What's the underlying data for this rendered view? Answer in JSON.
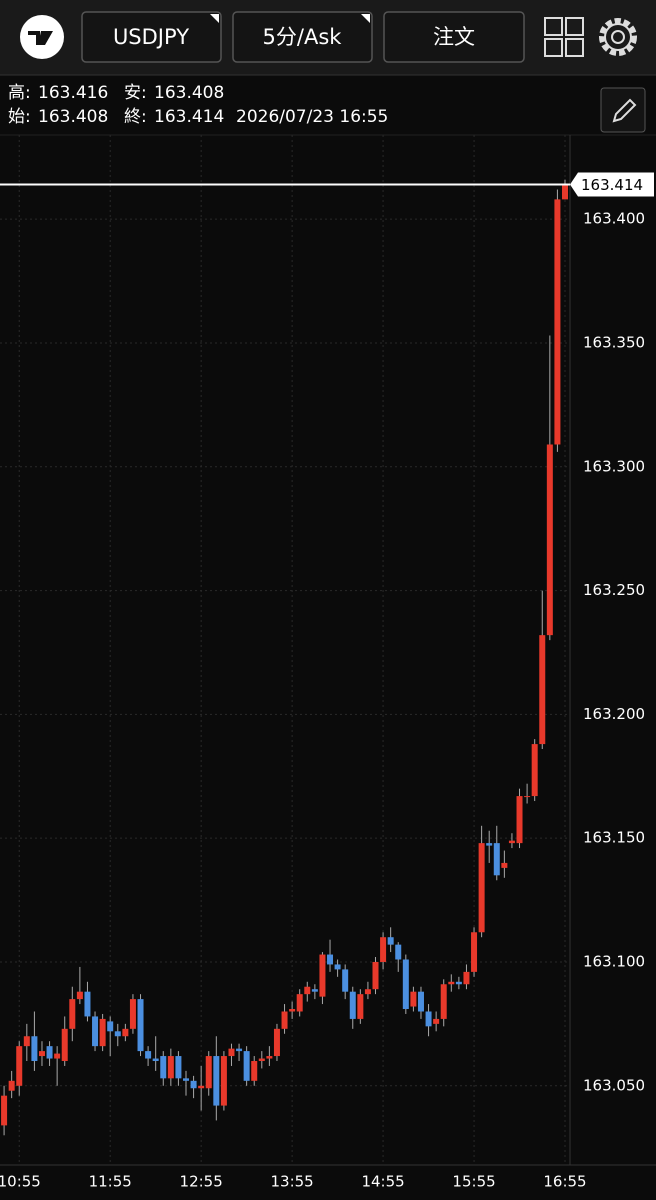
{
  "ui": {
    "symbol_button": "USDJPY",
    "timeframe_button": "5分/Ask",
    "order_button": "注文",
    "info": {
      "high_label": "高:",
      "high": "163.416",
      "low_label": "安:",
      "low": "163.408",
      "open_label": "始:",
      "open": "163.408",
      "close_label": "終:",
      "close": "163.414",
      "datetime": "2026/07/23 16:55"
    }
  },
  "chart_data": {
    "type": "candlestick",
    "categories": [
      null,
      null,
      "10:55",
      null,
      null,
      null,
      null,
      null,
      null,
      null,
      null,
      null,
      null,
      null,
      "11:55",
      null,
      null,
      null,
      null,
      null,
      null,
      null,
      null,
      null,
      null,
      null,
      "12:55",
      null,
      null,
      null,
      null,
      null,
      null,
      null,
      null,
      null,
      null,
      null,
      "13:55",
      null,
      null,
      null,
      null,
      null,
      null,
      null,
      null,
      null,
      null,
      null,
      "14:55",
      null,
      null,
      null,
      null,
      null,
      null,
      null,
      null,
      null,
      null,
      null,
      "15:55",
      null,
      null,
      null,
      null,
      null,
      null,
      null,
      null,
      null,
      null,
      null,
      "16:55"
    ],
    "open": [
      163.034,
      163.048,
      163.05,
      163.066,
      163.07,
      163.062,
      163.066,
      163.061,
      163.06,
      163.073,
      163.085,
      163.088,
      163.078,
      163.066,
      163.076,
      163.072,
      163.07,
      163.073,
      163.085,
      163.064,
      163.061,
      163.062,
      163.053,
      163.062,
      163.053,
      163.052,
      163.049,
      163.049,
      163.062,
      163.042,
      163.062,
      163.065,
      163.064,
      163.052,
      163.06,
      163.061,
      163.062,
      163.073,
      163.08,
      163.08,
      163.087,
      163.089,
      163.086,
      163.103,
      163.099,
      163.097,
      163.088,
      163.077,
      163.087,
      163.089,
      163.1,
      163.11,
      163.107,
      163.101,
      163.082,
      163.088,
      163.08,
      163.075,
      163.077,
      163.091,
      163.092,
      163.091,
      163.096,
      163.112,
      163.148,
      163.148,
      163.138,
      163.148,
      163.148,
      163.167,
      163.167,
      163.188,
      163.232,
      163.309,
      163.408
    ],
    "high": [
      163.05,
      163.056,
      163.068,
      163.075,
      163.08,
      163.068,
      163.068,
      163.066,
      163.078,
      163.09,
      163.098,
      163.092,
      163.08,
      163.079,
      163.078,
      163.075,
      163.075,
      163.087,
      163.087,
      163.066,
      163.07,
      163.064,
      163.065,
      163.064,
      163.056,
      163.054,
      163.058,
      163.064,
      163.07,
      163.064,
      163.067,
      163.067,
      163.066,
      163.062,
      163.064,
      163.066,
      163.075,
      163.083,
      163.084,
      163.089,
      163.092,
      163.091,
      163.104,
      163.109,
      163.101,
      163.099,
      163.09,
      163.089,
      163.092,
      163.102,
      163.112,
      163.114,
      163.108,
      163.103,
      163.09,
      163.09,
      163.083,
      163.08,
      163.093,
      163.095,
      163.094,
      163.099,
      163.114,
      163.155,
      163.153,
      163.155,
      163.145,
      163.152,
      163.17,
      163.172,
      163.19,
      163.25,
      163.353,
      163.412,
      163.416
    ],
    "low": [
      163.03,
      163.045,
      163.046,
      163.06,
      163.056,
      163.058,
      163.058,
      163.05,
      163.058,
      163.068,
      163.083,
      163.076,
      163.064,
      163.064,
      163.062,
      163.066,
      163.068,
      163.071,
      163.062,
      163.058,
      163.056,
      163.05,
      163.05,
      163.05,
      163.046,
      163.045,
      163.04,
      163.046,
      163.036,
      163.04,
      163.058,
      163.06,
      163.05,
      163.05,
      163.057,
      163.058,
      163.06,
      163.071,
      163.077,
      163.078,
      163.084,
      163.085,
      163.083,
      163.096,
      163.094,
      163.085,
      163.073,
      163.075,
      163.085,
      163.087,
      163.097,
      163.104,
      163.096,
      163.079,
      163.08,
      163.077,
      163.07,
      163.072,
      163.074,
      163.088,
      163.089,
      163.089,
      163.094,
      163.11,
      163.14,
      163.133,
      163.134,
      163.146,
      163.146,
      163.164,
      163.165,
      163.186,
      163.23,
      163.306,
      163.408
    ],
    "close": [
      163.046,
      163.052,
      163.066,
      163.07,
      163.06,
      163.064,
      163.061,
      163.063,
      163.073,
      163.085,
      163.088,
      163.078,
      163.066,
      163.077,
      163.072,
      163.07,
      163.073,
      163.085,
      163.064,
      163.061,
      163.06,
      163.053,
      163.062,
      163.053,
      163.052,
      163.049,
      163.05,
      163.062,
      163.042,
      163.062,
      163.065,
      163.064,
      163.052,
      163.06,
      163.061,
      163.062,
      163.073,
      163.08,
      163.081,
      163.087,
      163.09,
      163.088,
      163.103,
      163.099,
      163.097,
      163.088,
      163.077,
      163.087,
      163.089,
      163.1,
      163.11,
      163.107,
      163.101,
      163.081,
      163.088,
      163.08,
      163.074,
      163.077,
      163.091,
      163.092,
      163.091,
      163.096,
      163.112,
      163.148,
      163.147,
      163.135,
      163.14,
      163.149,
      163.167,
      163.167,
      163.188,
      163.232,
      163.309,
      163.408,
      163.414
    ],
    "up_color": "#e8392b",
    "down_color": "#4b8fe0",
    "ylim": [
      163.018,
      163.434
    ],
    "yticks": [
      {
        "value": 163.05,
        "label": "163.050"
      },
      {
        "value": 163.1,
        "label": "163.100"
      },
      {
        "value": 163.15,
        "label": "163.150"
      },
      {
        "value": 163.2,
        "label": "163.200"
      },
      {
        "value": 163.25,
        "label": "163.250"
      },
      {
        "value": 163.3,
        "label": "163.300"
      },
      {
        "value": 163.35,
        "label": "163.350"
      },
      {
        "value": 163.4,
        "label": "163.400"
      }
    ],
    "grid": true
  }
}
